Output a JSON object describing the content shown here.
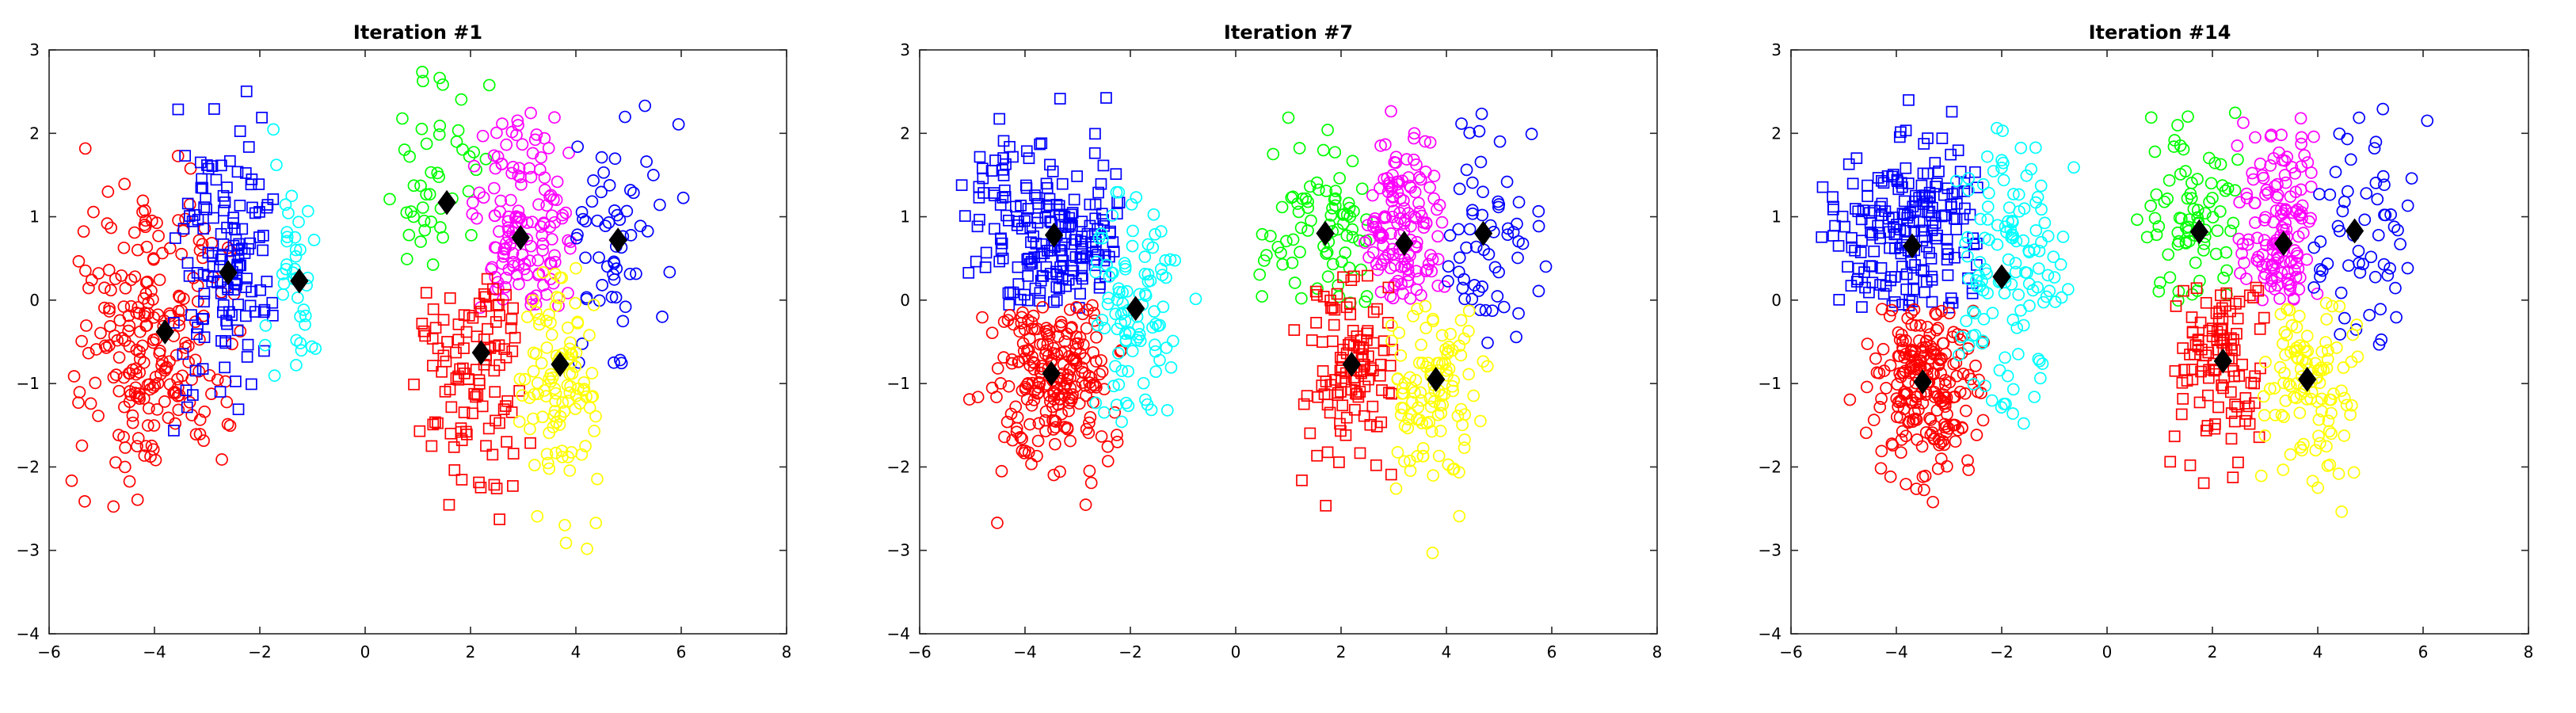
{
  "colors": {
    "red": "#ff0000",
    "blue": "#0000ff",
    "cyan": "#00ffff",
    "green": "#00ff00",
    "magenta": "#ff00ff",
    "yellow": "#ffff00",
    "centroid": "#000000",
    "frame": "#262626"
  },
  "chart_data": [
    {
      "type": "scatter",
      "title": "Iteration #1",
      "xlim": [
        -6,
        8
      ],
      "ylim": [
        -4,
        3
      ],
      "xticks": [
        -6,
        -4,
        -2,
        0,
        2,
        4,
        6,
        8
      ],
      "yticks": [
        -4,
        -3,
        -2,
        -1,
        0,
        1,
        2,
        3
      ],
      "grid": false,
      "regions": [
        {
          "color": "red",
          "marker": "circle",
          "count": 230,
          "cx": -4.1,
          "cy": -0.45,
          "sx": 0.75,
          "sy": 0.9,
          "xmin": -5.6,
          "xmax": -2.3,
          "ymin": -2.7,
          "ymax": 2.0
        },
        {
          "color": "blue",
          "marker": "square",
          "count": 140,
          "cx": -2.7,
          "cy": 0.5,
          "sx": 0.55,
          "sy": 0.8,
          "xmin": -3.7,
          "xmax": -1.7,
          "ymin": -1.6,
          "ymax": 2.7
        },
        {
          "color": "cyan",
          "marker": "circle",
          "count": 40,
          "cx": -1.4,
          "cy": 0.1,
          "sx": 0.35,
          "sy": 0.7,
          "xmin": -1.9,
          "xmax": -0.6,
          "ymin": -1.5,
          "ymax": 2.1
        },
        {
          "color": "green",
          "marker": "circle",
          "count": 45,
          "cx": 1.4,
          "cy": 1.3,
          "sx": 0.55,
          "sy": 0.6,
          "xmin": 0.4,
          "xmax": 2.4,
          "ymin": 0.0,
          "ymax": 2.8
        },
        {
          "color": "magenta",
          "marker": "circle",
          "count": 140,
          "cx": 3.0,
          "cy": 0.8,
          "sx": 0.55,
          "sy": 0.6,
          "xmin": 2.0,
          "xmax": 4.0,
          "ymin": -0.1,
          "ymax": 2.9
        },
        {
          "color": "blue",
          "marker": "circle",
          "count": 60,
          "cx": 4.7,
          "cy": 0.6,
          "sx": 0.6,
          "sy": 0.8,
          "xmin": 3.9,
          "xmax": 6.2,
          "ymin": -0.8,
          "ymax": 2.4
        },
        {
          "color": "red",
          "marker": "square",
          "count": 110,
          "cx": 2.2,
          "cy": -0.8,
          "sx": 0.6,
          "sy": 0.7,
          "xmin": 0.7,
          "xmax": 3.2,
          "ymin": -2.9,
          "ymax": 0.3
        },
        {
          "color": "yellow",
          "marker": "circle",
          "count": 110,
          "cx": 3.7,
          "cy": -0.9,
          "sx": 0.45,
          "sy": 0.8,
          "xmin": 2.9,
          "xmax": 4.6,
          "ymin": -3.1,
          "ymax": 0.4
        }
      ],
      "centroids": [
        {
          "x": -3.8,
          "y": -0.38
        },
        {
          "x": -2.6,
          "y": 0.33
        },
        {
          "x": -1.25,
          "y": 0.23
        },
        {
          "x": 1.55,
          "y": 1.17
        },
        {
          "x": 2.95,
          "y": 0.75
        },
        {
          "x": 4.8,
          "y": 0.72
        },
        {
          "x": 2.2,
          "y": -0.63
        },
        {
          "x": 3.7,
          "y": -0.77
        }
      ]
    },
    {
      "type": "scatter",
      "title": "Iteration #7",
      "xlim": [
        -6,
        8
      ],
      "ylim": [
        -4,
        3
      ],
      "xticks": [
        -6,
        -4,
        -2,
        0,
        2,
        4,
        6,
        8
      ],
      "yticks": [
        -4,
        -3,
        -2,
        -1,
        0,
        1,
        2,
        3
      ],
      "grid": false,
      "regions": [
        {
          "color": "blue",
          "marker": "square",
          "count": 200,
          "cx": -3.6,
          "cy": 0.8,
          "sx": 0.8,
          "sy": 0.65,
          "xmin": -5.5,
          "xmax": -2.1,
          "ymin": -0.1,
          "ymax": 2.7
        },
        {
          "color": "red",
          "marker": "circle",
          "count": 220,
          "cx": -3.4,
          "cy": -0.9,
          "sx": 0.6,
          "sy": 0.6,
          "xmin": -5.4,
          "xmax": -2.1,
          "ymin": -2.7,
          "ymax": -0.05
        },
        {
          "color": "cyan",
          "marker": "circle",
          "count": 100,
          "cx": -1.9,
          "cy": -0.1,
          "sx": 0.5,
          "sy": 0.8,
          "xmin": -2.8,
          "xmax": -0.6,
          "ymin": -1.5,
          "ymax": 1.6
        },
        {
          "color": "green",
          "marker": "circle",
          "count": 80,
          "cx": 1.6,
          "cy": 0.8,
          "sx": 0.6,
          "sy": 0.6,
          "xmin": 0.4,
          "xmax": 2.5,
          "ymin": -0.1,
          "ymax": 2.5
        },
        {
          "color": "magenta",
          "marker": "circle",
          "count": 140,
          "cx": 3.2,
          "cy": 0.8,
          "sx": 0.45,
          "sy": 0.6,
          "xmin": 2.4,
          "xmax": 4.0,
          "ymin": 0.0,
          "ymax": 2.9
        },
        {
          "color": "blue",
          "marker": "circle",
          "count": 60,
          "cx": 4.8,
          "cy": 0.7,
          "sx": 0.55,
          "sy": 0.8,
          "xmin": 3.9,
          "xmax": 6.2,
          "ymin": -0.6,
          "ymax": 2.4
        },
        {
          "color": "red",
          "marker": "square",
          "count": 110,
          "cx": 2.2,
          "cy": -0.7,
          "sx": 0.5,
          "sy": 0.7,
          "xmin": 0.7,
          "xmax": 3.0,
          "ymin": -2.9,
          "ymax": 0.3
        },
        {
          "color": "yellow",
          "marker": "circle",
          "count": 110,
          "cx": 3.8,
          "cy": -1.0,
          "sx": 0.45,
          "sy": 0.7,
          "xmin": 2.9,
          "xmax": 4.8,
          "ymin": -3.1,
          "ymax": 0.0
        }
      ],
      "centroids": [
        {
          "x": -3.45,
          "y": 0.78
        },
        {
          "x": -3.5,
          "y": -0.88
        },
        {
          "x": -1.9,
          "y": -0.1
        },
        {
          "x": 1.7,
          "y": 0.8
        },
        {
          "x": 3.2,
          "y": 0.68
        },
        {
          "x": 4.7,
          "y": 0.8
        },
        {
          "x": 2.2,
          "y": -0.77
        },
        {
          "x": 3.8,
          "y": -0.95
        }
      ]
    },
    {
      "type": "scatter",
      "title": "Iteration #14",
      "xlim": [
        -6,
        8
      ],
      "ylim": [
        -4,
        3
      ],
      "xticks": [
        -6,
        -4,
        -2,
        0,
        2,
        4,
        6,
        8
      ],
      "yticks": [
        -4,
        -3,
        -2,
        -1,
        0,
        1,
        2,
        3
      ],
      "grid": false,
      "regions": [
        {
          "color": "blue",
          "marker": "square",
          "count": 200,
          "cx": -3.7,
          "cy": 0.75,
          "sx": 0.8,
          "sy": 0.65,
          "xmin": -5.5,
          "xmax": -2.4,
          "ymin": -0.1,
          "ymax": 2.7
        },
        {
          "color": "red",
          "marker": "circle",
          "count": 220,
          "cx": -3.4,
          "cy": -0.95,
          "sx": 0.6,
          "sy": 0.6,
          "xmin": -5.4,
          "xmax": -2.3,
          "ymin": -2.7,
          "ymax": -0.1
        },
        {
          "color": "cyan",
          "marker": "circle",
          "count": 130,
          "cx": -1.9,
          "cy": 0.2,
          "sx": 0.6,
          "sy": 0.8,
          "xmin": -2.9,
          "xmax": -0.6,
          "ymin": -1.5,
          "ymax": 2.2
        },
        {
          "color": "green",
          "marker": "circle",
          "count": 80,
          "cx": 1.7,
          "cy": 0.8,
          "sx": 0.55,
          "sy": 0.6,
          "xmin": 0.4,
          "xmax": 2.5,
          "ymin": -0.1,
          "ymax": 2.5
        },
        {
          "color": "magenta",
          "marker": "circle",
          "count": 140,
          "cx": 3.3,
          "cy": 0.8,
          "sx": 0.45,
          "sy": 0.6,
          "xmin": 2.4,
          "xmax": 4.0,
          "ymin": 0.0,
          "ymax": 2.9
        },
        {
          "color": "blue",
          "marker": "circle",
          "count": 60,
          "cx": 4.8,
          "cy": 0.7,
          "sx": 0.55,
          "sy": 0.8,
          "xmin": 3.9,
          "xmax": 6.2,
          "ymin": -0.6,
          "ymax": 2.4
        },
        {
          "color": "red",
          "marker": "square",
          "count": 110,
          "cx": 2.2,
          "cy": -0.7,
          "sx": 0.5,
          "sy": 0.7,
          "xmin": 0.7,
          "xmax": 3.0,
          "ymin": -2.9,
          "ymax": 0.3
        },
        {
          "color": "yellow",
          "marker": "circle",
          "count": 110,
          "cx": 3.8,
          "cy": -1.0,
          "sx": 0.45,
          "sy": 0.7,
          "xmin": 2.9,
          "xmax": 4.8,
          "ymin": -3.1,
          "ymax": 0.0
        }
      ],
      "centroids": [
        {
          "x": -3.7,
          "y": 0.65
        },
        {
          "x": -3.5,
          "y": -0.98
        },
        {
          "x": -2.0,
          "y": 0.28
        },
        {
          "x": 1.75,
          "y": 0.82
        },
        {
          "x": 3.35,
          "y": 0.68
        },
        {
          "x": 4.7,
          "y": 0.83
        },
        {
          "x": 2.2,
          "y": -0.73
        },
        {
          "x": 3.8,
          "y": -0.95
        }
      ]
    }
  ]
}
